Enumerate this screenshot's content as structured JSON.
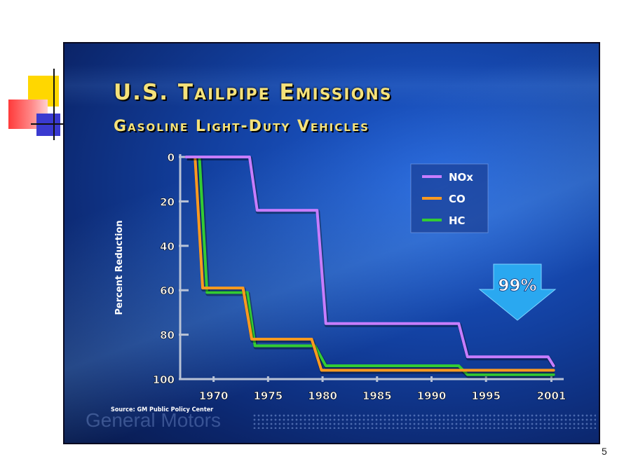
{
  "slide": {
    "page_number": "5"
  },
  "chart_data": {
    "type": "line",
    "title": "U.S. Tailpipe Emissions",
    "subtitle": "Gasoline Light-Duty Vehicles",
    "ylabel": "Percent Reduction",
    "xlabel": "",
    "ylim": [
      0,
      100
    ],
    "y_inverted": true,
    "y_ticks": [
      "0",
      "20",
      "40",
      "60",
      "80",
      "100"
    ],
    "x_ticks": [
      "1970",
      "1975",
      "1980",
      "1985",
      "1990",
      "1995",
      "2001"
    ],
    "xlim": [
      1967,
      2002
    ],
    "legend_position": "top-right",
    "series": [
      {
        "name": "NOx",
        "color": "#c77dff",
        "points": [
          [
            1967.5,
            0
          ],
          [
            1973.3,
            0
          ],
          [
            1974,
            24
          ],
          [
            1979.5,
            24
          ],
          [
            1980.3,
            75
          ],
          [
            1992.5,
            75
          ],
          [
            1993.3,
            90
          ],
          [
            2000.7,
            90
          ],
          [
            2001.2,
            94
          ]
        ]
      },
      {
        "name": "CO",
        "color": "#ff9a1f",
        "points": [
          [
            1967.5,
            0
          ],
          [
            1968.3,
            0
          ],
          [
            1969,
            59
          ],
          [
            1972.7,
            59
          ],
          [
            1973.5,
            82
          ],
          [
            1979,
            82
          ],
          [
            1979.9,
            96
          ],
          [
            2001.2,
            96
          ]
        ]
      },
      {
        "name": "HC",
        "color": "#33cc33",
        "points": [
          [
            1967.8,
            0
          ],
          [
            1968.7,
            0
          ],
          [
            1969.4,
            61
          ],
          [
            1973.1,
            61
          ],
          [
            1973.8,
            85
          ],
          [
            1979.3,
            85
          ],
          [
            1980.3,
            94
          ],
          [
            1992.5,
            94
          ],
          [
            1993.3,
            98
          ],
          [
            2001.2,
            98
          ]
        ]
      }
    ],
    "annotation": {
      "text": "99%",
      "shape": "down-arrow",
      "color": "#2aa8f0"
    },
    "source": "Source: GM Public Policy Center",
    "watermark": "General Motors"
  }
}
